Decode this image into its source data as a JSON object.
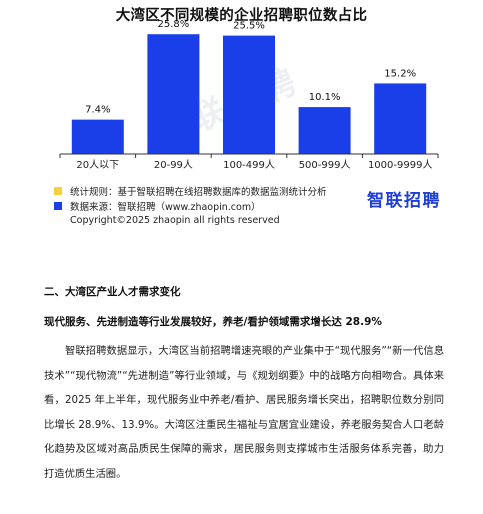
{
  "chart_data": {
    "type": "bar",
    "title": "大湾区不同规模的企业招聘职位数占比",
    "categories": [
      "20人以下",
      "20-99人",
      "100-499人",
      "500-999人",
      "1000-9999人"
    ],
    "values": [
      7.4,
      25.8,
      25.5,
      10.1,
      15.2
    ],
    "value_labels": [
      "7.4%",
      "25.8%",
      "25.5%",
      "10.1%",
      "15.2%"
    ],
    "unit": "%",
    "ylim": [
      0,
      28
    ],
    "bar_color": "#1a3fe8",
    "grid": false,
    "legend_position": "bottom-left"
  },
  "legend": {
    "items": [
      {
        "label": "统计规则：基于智联招聘在线招聘数据库的数据监测统计分析",
        "color": "#f5d23c"
      },
      {
        "label": "数据来源：智联招聘（www.zhaopin.com）",
        "color": "#1a3fe8"
      }
    ]
  },
  "copyright": "Copyright©2025 zhaopin all rights reserved",
  "brand": "智联招聘",
  "watermark": "智联招聘",
  "article": {
    "section_heading": "二、大湾区产业人才需求变化",
    "sub_heading": "现代服务、先进制造等行业发展较好，养老/看护领域需求增长达 28.9%",
    "paragraph": "智联招聘数据显示，大湾区当前招聘增速亮眼的产业集中于“现代服务”“新一代信息技术”“现代物流”“先进制造”等行业领域，与《规划纲要》中的战略方向相吻合。具体来看，2025 年上半年，现代服务业中养老/看护、居民服务增长突出，招聘职位数分别同比增长 28.9%、13.9%。大湾区注重民生福祉与宜居宜业建设，养老服务契合人口老龄化趋势及区域对高品质民生保障的需求，居民服务则支撑城市生活服务体系完善，助力打造优质生活圈。"
  }
}
